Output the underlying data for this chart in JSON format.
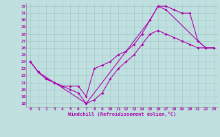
{
  "xlabel": "Windchill (Refroidissement éolien,°C)",
  "bg_color": "#c0e0e0",
  "grid_color": "#a0c8c8",
  "line_color": "#aa00aa",
  "xlim": [
    -0.5,
    23.5
  ],
  "ylim": [
    17.5,
    32.5
  ],
  "xticks": [
    0,
    1,
    2,
    3,
    4,
    5,
    6,
    7,
    8,
    9,
    10,
    11,
    12,
    13,
    14,
    15,
    16,
    17,
    18,
    19,
    20,
    21,
    22,
    23
  ],
  "yticks": [
    18,
    19,
    20,
    21,
    22,
    23,
    24,
    25,
    26,
    27,
    28,
    29,
    30,
    31,
    32
  ],
  "line1_x": [
    0,
    1,
    2,
    3,
    4,
    5,
    6,
    7,
    8,
    9,
    10,
    11,
    12,
    13,
    14,
    15,
    16,
    17,
    18,
    19,
    20,
    21,
    22,
    23
  ],
  "line1_y": [
    24.0,
    22.5,
    21.5,
    21.0,
    20.5,
    20.5,
    20.5,
    19.0,
    23.0,
    23.5,
    24.0,
    25.0,
    25.5,
    26.5,
    28.0,
    30.0,
    32.0,
    32.0,
    31.5,
    31.0,
    31.0,
    27.0,
    26.0,
    26.0
  ],
  "line2_x": [
    0,
    1,
    2,
    3,
    4,
    5,
    6,
    7,
    8,
    9,
    10,
    11,
    12,
    13,
    14,
    15,
    16,
    17,
    18,
    19,
    20,
    21,
    22,
    23
  ],
  "line2_y": [
    24.0,
    22.5,
    21.5,
    21.0,
    20.5,
    20.0,
    19.5,
    18.0,
    18.5,
    19.5,
    21.5,
    23.0,
    24.0,
    25.0,
    26.5,
    28.0,
    28.5,
    28.0,
    27.5,
    27.0,
    26.5,
    26.0,
    26.0,
    26.0
  ],
  "line3_x": [
    0,
    1,
    7,
    15,
    16,
    17,
    21,
    22,
    23
  ],
  "line3_y": [
    24.0,
    22.5,
    18.0,
    30.0,
    32.0,
    31.5,
    27.0,
    26.0,
    26.0
  ]
}
